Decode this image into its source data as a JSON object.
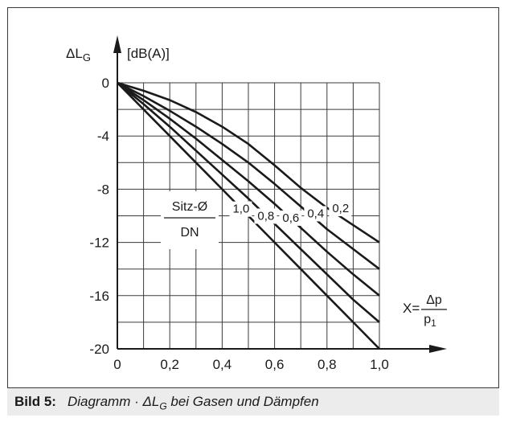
{
  "chart_data": {
    "type": "line",
    "xlim": [
      0,
      1.0
    ],
    "ylim": [
      -20,
      0
    ],
    "grid": true,
    "x_ticks": [
      {
        "value": 0,
        "label": "0"
      },
      {
        "value": 0.2,
        "label": "0,2"
      },
      {
        "value": 0.4,
        "label": "0,4"
      },
      {
        "value": 0.6,
        "label": "0,6"
      },
      {
        "value": 0.8,
        "label": "0,8"
      },
      {
        "value": 1.0,
        "label": "1,0"
      }
    ],
    "y_ticks": [
      {
        "value": 0,
        "label": "0"
      },
      {
        "value": -4,
        "label": "-4"
      },
      {
        "value": -8,
        "label": "-8"
      },
      {
        "value": -12,
        "label": "-12"
      },
      {
        "value": -16,
        "label": "-16"
      },
      {
        "value": -20,
        "label": "-20"
      }
    ],
    "ylabel": "ΔL",
    "ylabel_sub": "G",
    "yunit": "[dB(A)]",
    "xlabel_prefix": "X=",
    "xlabel_num": "Δp",
    "xlabel_den": "p",
    "xlabel_den_sub": "1",
    "curve_label_num": "Sitz-Ø",
    "curve_label_den": "DN",
    "series": [
      {
        "name": "1,0",
        "x": [
          0,
          0.1,
          0.2,
          0.3,
          0.4,
          0.5,
          0.6,
          0.7,
          0.8,
          0.9,
          1.0
        ],
        "values": [
          0,
          -2.0,
          -4.0,
          -6.0,
          -8.0,
          -10.0,
          -12.0,
          -14.0,
          -16.0,
          -18.0,
          -20.0
        ]
      },
      {
        "name": "0,8",
        "x": [
          0,
          0.1,
          0.2,
          0.3,
          0.4,
          0.5,
          0.6,
          0.7,
          0.8,
          0.9,
          1.0
        ],
        "values": [
          0,
          -1.6,
          -3.3,
          -5.1,
          -6.9,
          -8.7,
          -10.6,
          -12.5,
          -14.4,
          -16.3,
          -18.0
        ]
      },
      {
        "name": "0,6",
        "x": [
          0,
          0.1,
          0.2,
          0.3,
          0.4,
          0.5,
          0.6,
          0.7,
          0.8,
          0.9,
          1.0
        ],
        "values": [
          0,
          -1.3,
          -2.7,
          -4.2,
          -5.8,
          -7.4,
          -9.1,
          -10.9,
          -12.7,
          -14.4,
          -16.0
        ]
      },
      {
        "name": "0,4",
        "x": [
          0,
          0.1,
          0.2,
          0.3,
          0.4,
          0.5,
          0.6,
          0.7,
          0.8,
          0.9,
          1.0
        ],
        "values": [
          0,
          -1.0,
          -2.1,
          -3.3,
          -4.6,
          -6.0,
          -7.6,
          -9.3,
          -11.0,
          -12.5,
          -14.0
        ]
      },
      {
        "name": "0,2",
        "x": [
          0,
          0.1,
          0.2,
          0.3,
          0.4,
          0.5,
          0.6,
          0.7,
          0.8,
          0.9,
          1.0
        ],
        "values": [
          0,
          -0.6,
          -1.3,
          -2.2,
          -3.3,
          -4.6,
          -6.2,
          -7.9,
          -9.4,
          -10.7,
          -12.0
        ]
      }
    ]
  },
  "caption": {
    "label": "Bild 5:",
    "text": "Diagramm · ΔL",
    "text_sub": "G",
    "text_tail": " bei Gasen und Dämpfen"
  }
}
